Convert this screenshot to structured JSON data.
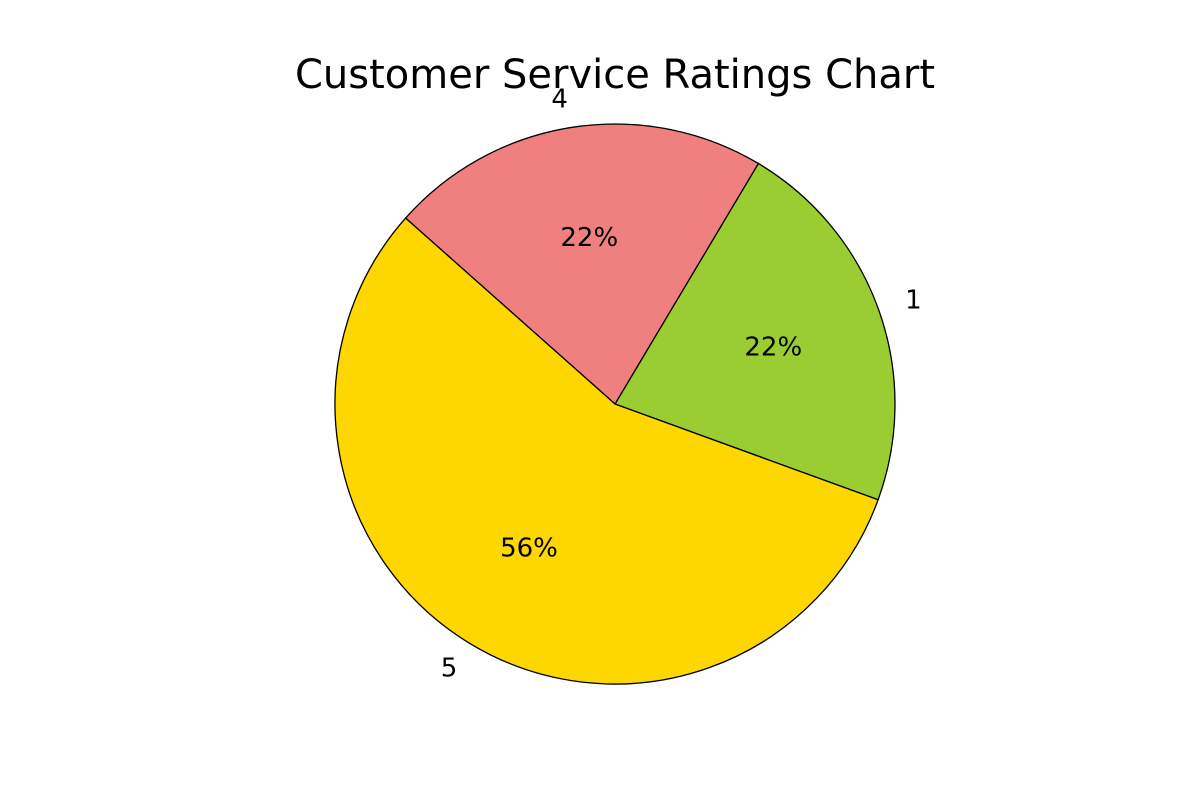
{
  "chart_data": {
    "type": "pie",
    "title": "Customer Service Ratings Chart",
    "categories": [
      "1",
      "4",
      "5"
    ],
    "values": [
      22,
      22,
      56
    ],
    "percent_labels": [
      "22%",
      "22%",
      "56%"
    ],
    "colors": [
      "#9acd32",
      "#f08080",
      "#ffd700"
    ],
    "edge_color": "#000000",
    "legend": "none",
    "slice_order": "clockwise from lower-right (1, then 4, then 5)"
  }
}
